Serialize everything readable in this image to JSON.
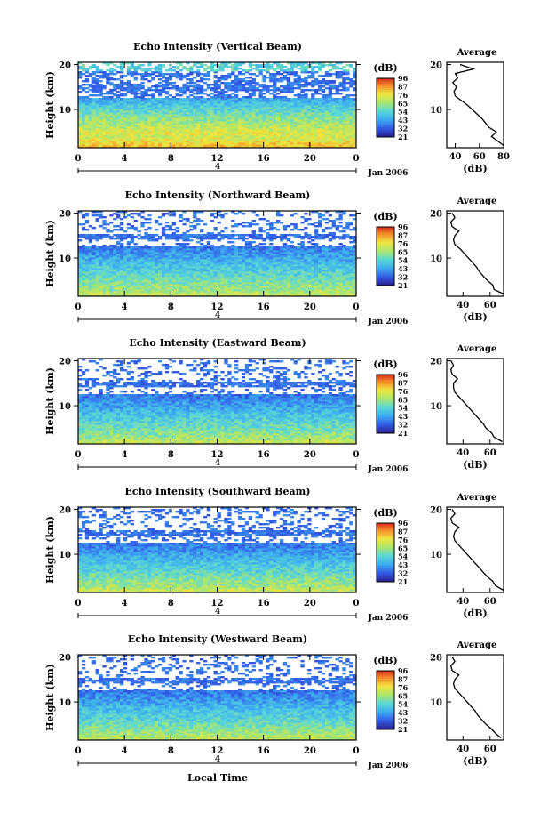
{
  "figure": {
    "date_label": "Jan 2006",
    "xlabel": "Local Time",
    "ylabel": "Height (km)",
    "colorbar_unit": "(dB)",
    "colorbar_ticks": [
      "96",
      "87",
      "76",
      "65",
      "54",
      "43",
      "32",
      "21"
    ],
    "avg_title": "Average",
    "avg_xlabel": "(dB)",
    "x_ticks": [
      "0",
      "4",
      "8",
      "12",
      "16",
      "20",
      "0"
    ],
    "y_ticks": [
      "20",
      "10"
    ],
    "date_day": "4"
  },
  "chart_data": [
    {
      "type": "heatmap",
      "title": "Echo Intensity (Vertical Beam)",
      "xlabel": "",
      "ylabel": "Height (km)",
      "xlim": [
        0,
        24
      ],
      "ylim": [
        1.5,
        20.5
      ],
      "colorbar": {
        "label": "(dB)",
        "ticks": [
          96,
          87,
          76,
          65,
          54,
          43,
          32,
          21
        ]
      },
      "avg_profile": {
        "title": "Average",
        "xlabel": "(dB)",
        "xlim": [
          33,
          80
        ],
        "x_ticks": [
          40,
          60,
          80
        ],
        "heights": [
          2,
          3,
          4,
          5,
          6,
          7,
          8,
          9,
          10,
          11,
          12,
          13,
          14,
          15,
          16,
          17,
          18,
          19,
          20
        ],
        "values": [
          80,
          75,
          70,
          74,
          68,
          65,
          62,
          58,
          54,
          50,
          45,
          40,
          39,
          41,
          38,
          42,
          40,
          55,
          44
        ]
      }
    },
    {
      "type": "heatmap",
      "title": "Echo Intensity (Northward Beam)",
      "xlabel": "",
      "ylabel": "Height (km)",
      "xlim": [
        0,
        24
      ],
      "ylim": [
        1.5,
        20.5
      ],
      "colorbar": {
        "label": "(dB)",
        "ticks": [
          96,
          87,
          76,
          65,
          54,
          43,
          32,
          21
        ]
      },
      "avg_profile": {
        "title": "Average",
        "xlabel": "(dB)",
        "xlim": [
          28,
          70
        ],
        "x_ticks": [
          40,
          60
        ],
        "heights": [
          2,
          3,
          4,
          5,
          6,
          7,
          8,
          9,
          10,
          11,
          12,
          13,
          14,
          15,
          16,
          17,
          18,
          19,
          20
        ],
        "values": [
          70,
          63,
          62,
          58,
          55,
          52,
          50,
          47,
          44,
          41,
          38,
          34,
          33,
          34,
          37,
          32,
          31,
          34,
          32
        ]
      }
    },
    {
      "type": "heatmap",
      "title": "Echo Intensity (Eastward Beam)",
      "xlabel": "",
      "ylabel": "Height (km)",
      "xlim": [
        0,
        24
      ],
      "ylim": [
        1.5,
        20.5
      ],
      "colorbar": {
        "label": "(dB)",
        "ticks": [
          96,
          87,
          76,
          65,
          54,
          43,
          32,
          21
        ]
      },
      "avg_profile": {
        "title": "Average",
        "xlabel": "(dB)",
        "xlim": [
          28,
          70
        ],
        "x_ticks": [
          40,
          60
        ],
        "heights": [
          2,
          3,
          4,
          5,
          6,
          7,
          8,
          9,
          10,
          11,
          12,
          13,
          14,
          15,
          16,
          17,
          18,
          19,
          20
        ],
        "values": [
          69,
          63,
          61,
          57,
          55,
          52,
          49,
          46,
          43,
          40,
          37,
          34,
          33,
          33,
          36,
          32,
          31,
          33,
          31
        ]
      }
    },
    {
      "type": "heatmap",
      "title": "Echo Intensity (Southward Beam)",
      "xlabel": "",
      "ylabel": "Height (km)",
      "xlim": [
        0,
        24
      ],
      "ylim": [
        1.5,
        20.5
      ],
      "colorbar": {
        "label": "(dB)",
        "ticks": [
          96,
          87,
          76,
          65,
          54,
          43,
          32,
          21
        ]
      },
      "avg_profile": {
        "title": "Average",
        "xlabel": "(dB)",
        "xlim": [
          28,
          70
        ],
        "x_ticks": [
          40,
          60
        ],
        "heights": [
          2,
          3,
          4,
          5,
          6,
          7,
          8,
          9,
          10,
          11,
          12,
          13,
          14,
          15,
          16,
          17,
          18,
          19,
          20
        ],
        "values": [
          70,
          64,
          62,
          58,
          55,
          52,
          49,
          46,
          43,
          40,
          37,
          34,
          33,
          34,
          37,
          32,
          31,
          34,
          32
        ]
      }
    },
    {
      "type": "heatmap",
      "title": "Echo Intensity (Westward Beam)",
      "xlabel": "Local Time",
      "ylabel": "Height (km)",
      "xlim": [
        0,
        24
      ],
      "ylim": [
        1.5,
        20.5
      ],
      "colorbar": {
        "label": "(dB)",
        "ticks": [
          96,
          87,
          76,
          65,
          54,
          43,
          32,
          21
        ]
      },
      "avg_profile": {
        "title": "Average",
        "xlabel": "(dB)",
        "xlim": [
          28,
          70
        ],
        "x_ticks": [
          40,
          60
        ],
        "heights": [
          2,
          3,
          4,
          5,
          6,
          7,
          8,
          9,
          10,
          11,
          12,
          13,
          14,
          15,
          16,
          17,
          18,
          19,
          20
        ],
        "values": [
          68,
          64,
          61,
          57,
          54,
          51,
          49,
          46,
          43,
          40,
          37,
          34,
          33,
          34,
          37,
          32,
          31,
          34,
          32
        ]
      }
    }
  ]
}
